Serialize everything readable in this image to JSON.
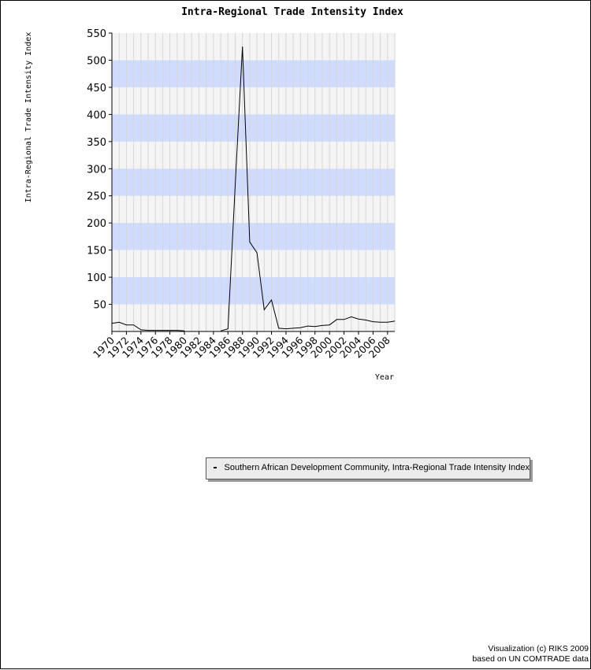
{
  "chart_data": {
    "type": "line",
    "title": "Intra-Regional Trade Intensity Index",
    "ylabel": "Intra-Regional Trade Intensity Index",
    "xlabel": "Year",
    "ylim": [
      0,
      550
    ],
    "yticks": [
      50,
      100,
      150,
      200,
      250,
      300,
      350,
      400,
      450,
      500,
      550
    ],
    "x": [
      1970,
      1971,
      1972,
      1973,
      1974,
      1975,
      1976,
      1977,
      1978,
      1979,
      1980,
      1981,
      1982,
      1983,
      1984,
      1985,
      1986,
      1987,
      1988,
      1989,
      1990,
      1991,
      1992,
      1993,
      1994,
      1995,
      1996,
      1997,
      1998,
      1999,
      2000,
      2001,
      2002,
      2003,
      2004,
      2005,
      2006,
      2007,
      2008,
      2009
    ],
    "xtick_labels": [
      "1970",
      "1972",
      "1974",
      "1976",
      "1978",
      "1980",
      "1982",
      "1984",
      "1986",
      "1988",
      "1990",
      "1992",
      "1994",
      "1996",
      "1998",
      "2000",
      "2002",
      "2004",
      "2006",
      "2008"
    ],
    "series": [
      {
        "name": "Southern African Development Community, Intra-Regional Trade Intensity Index",
        "color": "#000000",
        "values": [
          15,
          17,
          12,
          12,
          3,
          2,
          2,
          2,
          2,
          2,
          1,
          null,
          null,
          null,
          null,
          1,
          5,
          270,
          525,
          165,
          145,
          40,
          58,
          6,
          5,
          6,
          7,
          10,
          9,
          11,
          12,
          22,
          22,
          27,
          23,
          21,
          18,
          17,
          17,
          19
        ]
      }
    ],
    "grid": true,
    "band_color": "#d0dcff",
    "plot_background": "#f4f4f4",
    "legend_position": "bottom-right"
  },
  "footer": {
    "line1": "Visualization (c) RIKS 2009",
    "line2": "based on UN COMTRADE data"
  }
}
